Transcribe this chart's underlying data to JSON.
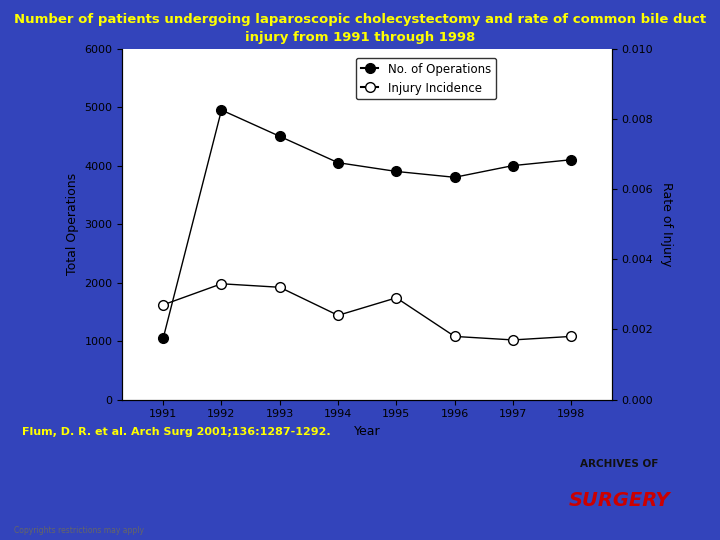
{
  "title_line1": "Number of patients undergoing laparoscopic cholecystectomy and rate of common bile duct",
  "title_line2": "injury from 1991 through 1998",
  "title_color": "#FFFF00",
  "bg_color": "#3344BB",
  "plot_bg_color": "#FFFFFF",
  "bottom_bg_color": "#000020",
  "years": [
    1991,
    1992,
    1993,
    1994,
    1995,
    1996,
    1997,
    1998
  ],
  "operations": [
    1050,
    4950,
    4500,
    4050,
    3900,
    3800,
    4000,
    4100
  ],
  "injury_incidence": [
    0.0027,
    0.0033,
    0.0032,
    0.0024,
    0.0029,
    0.0018,
    0.0017,
    0.0018
  ],
  "left_ylabel": "Total Operations",
  "right_ylabel": "Rate of Injury",
  "xlabel": "Year",
  "left_ylim": [
    0,
    6000
  ],
  "right_ylim": [
    0,
    0.01
  ],
  "left_yticks": [
    0,
    1000,
    2000,
    3000,
    4000,
    5000,
    6000
  ],
  "right_yticks": [
    0,
    0.002,
    0.004,
    0.006,
    0.008,
    0.01
  ],
  "citation": "Flum, D. R. et al. Arch Surg 2001;136:1287-1292.",
  "citation_color": "#FFFF00",
  "copyright_text": "Copyrights restrictions may apply",
  "copyright_color": "#666666",
  "legend_labels": [
    "No. of Operations",
    "Injury Incidence"
  ],
  "archives_text_top": "ARCHIVES OF",
  "archives_text_bot": "SURGERY",
  "archives_top_color": "#111111",
  "archives_bot_color": "#CC0000"
}
